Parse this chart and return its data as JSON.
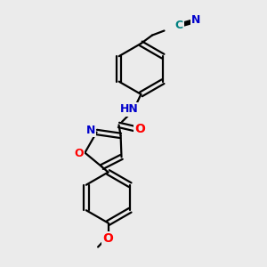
{
  "background_color": "#ebebeb",
  "bond_color": "#000000",
  "bond_width": 1.6,
  "atom_colors": {
    "N": "#0000cc",
    "O": "#ff0000",
    "C_teal": "#008080",
    "default": "#000000"
  },
  "font_size": 9,
  "fig_width": 3.0,
  "fig_height": 3.0,
  "dpi": 100,
  "xlim": [
    0,
    10
  ],
  "ylim": [
    0,
    10
  ]
}
